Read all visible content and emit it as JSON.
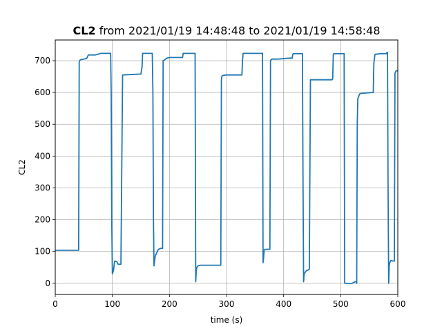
{
  "chart_data": {
    "type": "line",
    "title_bold": "CL2",
    "title_rest": " from 2021/01/19 14:48:48 to 2021/01/19 14:58:48",
    "xlabel": "time (s)",
    "ylabel": "CL2",
    "xlim": [
      0,
      600
    ],
    "ylim": [
      -35,
      765
    ],
    "xticks": [
      0,
      100,
      200,
      300,
      400,
      500,
      600
    ],
    "yticks": [
      0,
      100,
      200,
      300,
      400,
      500,
      600,
      700
    ],
    "grid": true,
    "series": [
      {
        "color": "#1f77b4",
        "x": [
          0,
          41,
          42,
          43,
          44,
          50,
          55,
          58,
          60,
          65,
          70,
          80,
          97,
          98,
          99,
          100,
          102,
          104,
          108,
          110,
          112,
          115,
          118,
          140,
          150,
          152,
          153,
          165,
          170,
          171,
          172,
          173,
          175,
          180,
          182,
          185,
          188,
          189,
          190,
          193,
          196,
          200,
          215,
          223,
          224,
          225,
          245,
          246,
          247,
          248,
          250,
          252,
          255,
          290,
          291,
          292,
          295,
          300,
          327,
          328,
          329,
          330,
          340,
          363,
          364,
          365,
          366,
          370,
          375,
          376,
          377,
          378,
          380,
          390,
          410,
          415,
          416,
          417,
          432,
          433,
          434,
          435,
          436,
          440,
          443,
          445,
          447,
          450,
          485,
          486,
          487,
          488,
          505,
          506,
          507,
          508,
          520,
          522,
          525,
          527,
          528,
          529,
          530,
          533,
          535,
          556,
          557,
          558,
          560,
          570,
          580,
          581,
          582,
          583,
          584,
          585,
          586,
          588,
          592,
          594,
          595,
          597,
          600
        ],
        "y": [
          104,
          104,
          695,
          700,
          703,
          705,
          707,
          718,
          718,
          718,
          718,
          723,
          723,
          600,
          200,
          30,
          40,
          70,
          68,
          60,
          60,
          60,
          655,
          657,
          658,
          680,
          723,
          723,
          723,
          600,
          200,
          55,
          85,
          105,
          108,
          110,
          110,
          700,
          700,
          705,
          708,
          710,
          710,
          710,
          723,
          723,
          723,
          5,
          40,
          50,
          55,
          56,
          57,
          57,
          640,
          652,
          654,
          655,
          655,
          700,
          723,
          723,
          723,
          723,
          65,
          80,
          105,
          107,
          107,
          107,
          700,
          703,
          705,
          705,
          708,
          708,
          720,
          722,
          722,
          722,
          300,
          5,
          30,
          40,
          42,
          45,
          640,
          640,
          640,
          645,
          720,
          722,
          722,
          722,
          0,
          0,
          0,
          2,
          5,
          5,
          0,
          500,
          580,
          595,
          597,
          600,
          600,
          690,
          720,
          722,
          722,
          726,
          726,
          300,
          0,
          55,
          65,
          72,
          70,
          70,
          660,
          668,
          668
        ]
      }
    ]
  }
}
